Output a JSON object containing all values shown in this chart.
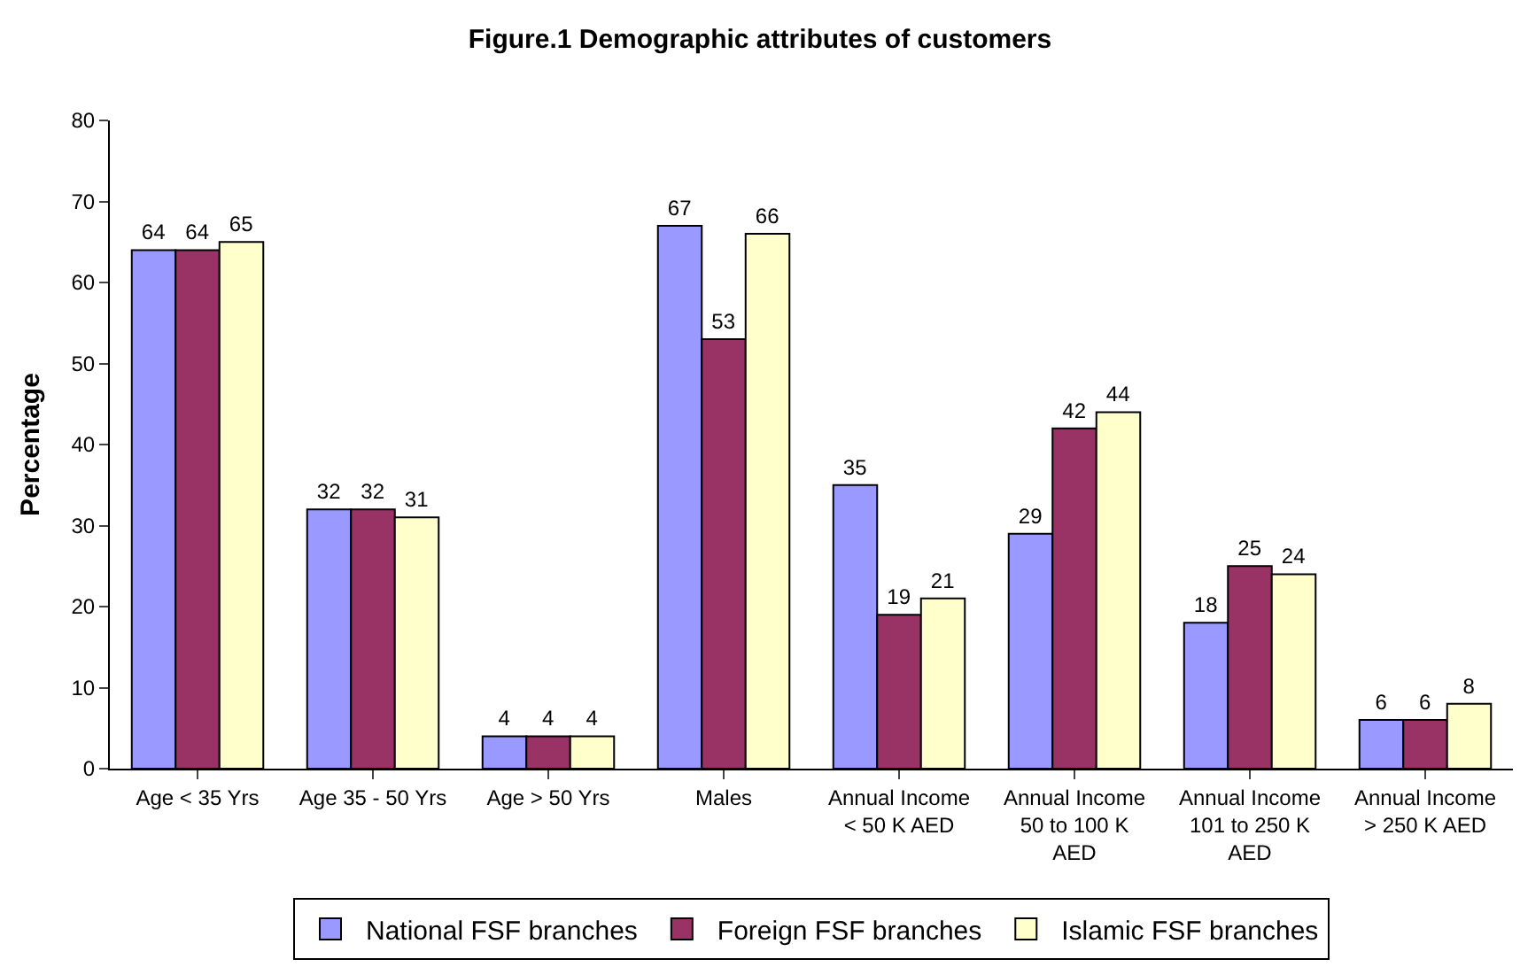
{
  "chart_data": {
    "type": "bar",
    "title": "Figure.1 Demographic attributes of customers",
    "ylabel": "Percentage",
    "categories": [
      "Age < 35 Yrs",
      "Age 35 - 50 Yrs",
      "Age > 50 Yrs",
      "Males",
      "Annual Income < 50 K AED",
      "Annual Income 50 to 100 K AED",
      "Annual Income 101 to 250 K AED",
      "Annual Income > 250 K AED"
    ],
    "series": [
      {
        "name": "National FSF branches",
        "color": "#9999ff",
        "values": [
          64,
          32,
          4,
          67,
          35,
          29,
          18,
          6
        ]
      },
      {
        "name": "Foreign FSF branches",
        "color": "#993366",
        "values": [
          64,
          32,
          4,
          53,
          19,
          42,
          25,
          6
        ]
      },
      {
        "name": "Islamic FSF branches",
        "color": "#ffffcc",
        "values": [
          65,
          31,
          4,
          66,
          21,
          44,
          24,
          8
        ]
      }
    ],
    "ylim": [
      0,
      80
    ],
    "yticks": [
      0,
      10,
      20,
      30,
      40,
      50,
      60,
      70,
      80
    ],
    "grid": false,
    "legend": "bottom",
    "data_labels": true
  }
}
